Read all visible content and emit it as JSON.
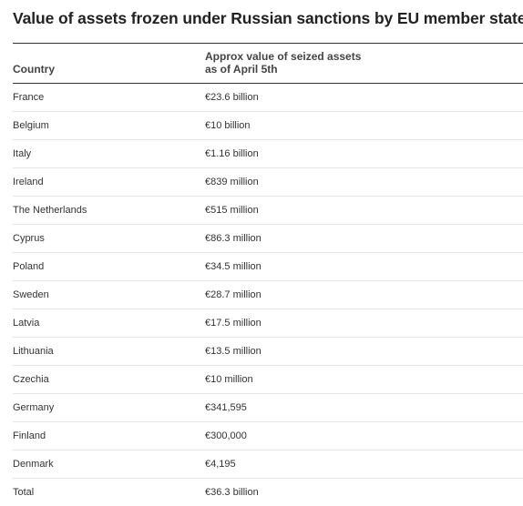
{
  "title": "Value of assets frozen under Russian sanctions by EU member states",
  "chart_data": {
    "type": "table",
    "title": "Value of assets frozen under Russian sanctions by EU member states",
    "columns": [
      "Country",
      "Approx value of seized assets\nas of April 5th"
    ],
    "rows": [
      {
        "country": "France",
        "value": "€23.6 billion"
      },
      {
        "country": "Belgium",
        "value": "€10 billion"
      },
      {
        "country": "Italy",
        "value": "€1.16 billion"
      },
      {
        "country": "Ireland",
        "value": "€839 million"
      },
      {
        "country": "The Netherlands",
        "value": "€515 million"
      },
      {
        "country": "Cyprus",
        "value": "€86.3 million"
      },
      {
        "country": "Poland",
        "value": "€34.5 million"
      },
      {
        "country": "Sweden",
        "value": "€28.7 million"
      },
      {
        "country": "Latvia",
        "value": "€17.5 million"
      },
      {
        "country": "Lithuania",
        "value": "€13.5 million"
      },
      {
        "country": "Czechia",
        "value": "€10 million"
      },
      {
        "country": "Germany",
        "value": "€341,595"
      },
      {
        "country": "Finland",
        "value": "€300,000"
      },
      {
        "country": "Denmark",
        "value": "€4,195"
      },
      {
        "country": "Total",
        "value": "€36.3 billion"
      }
    ]
  }
}
